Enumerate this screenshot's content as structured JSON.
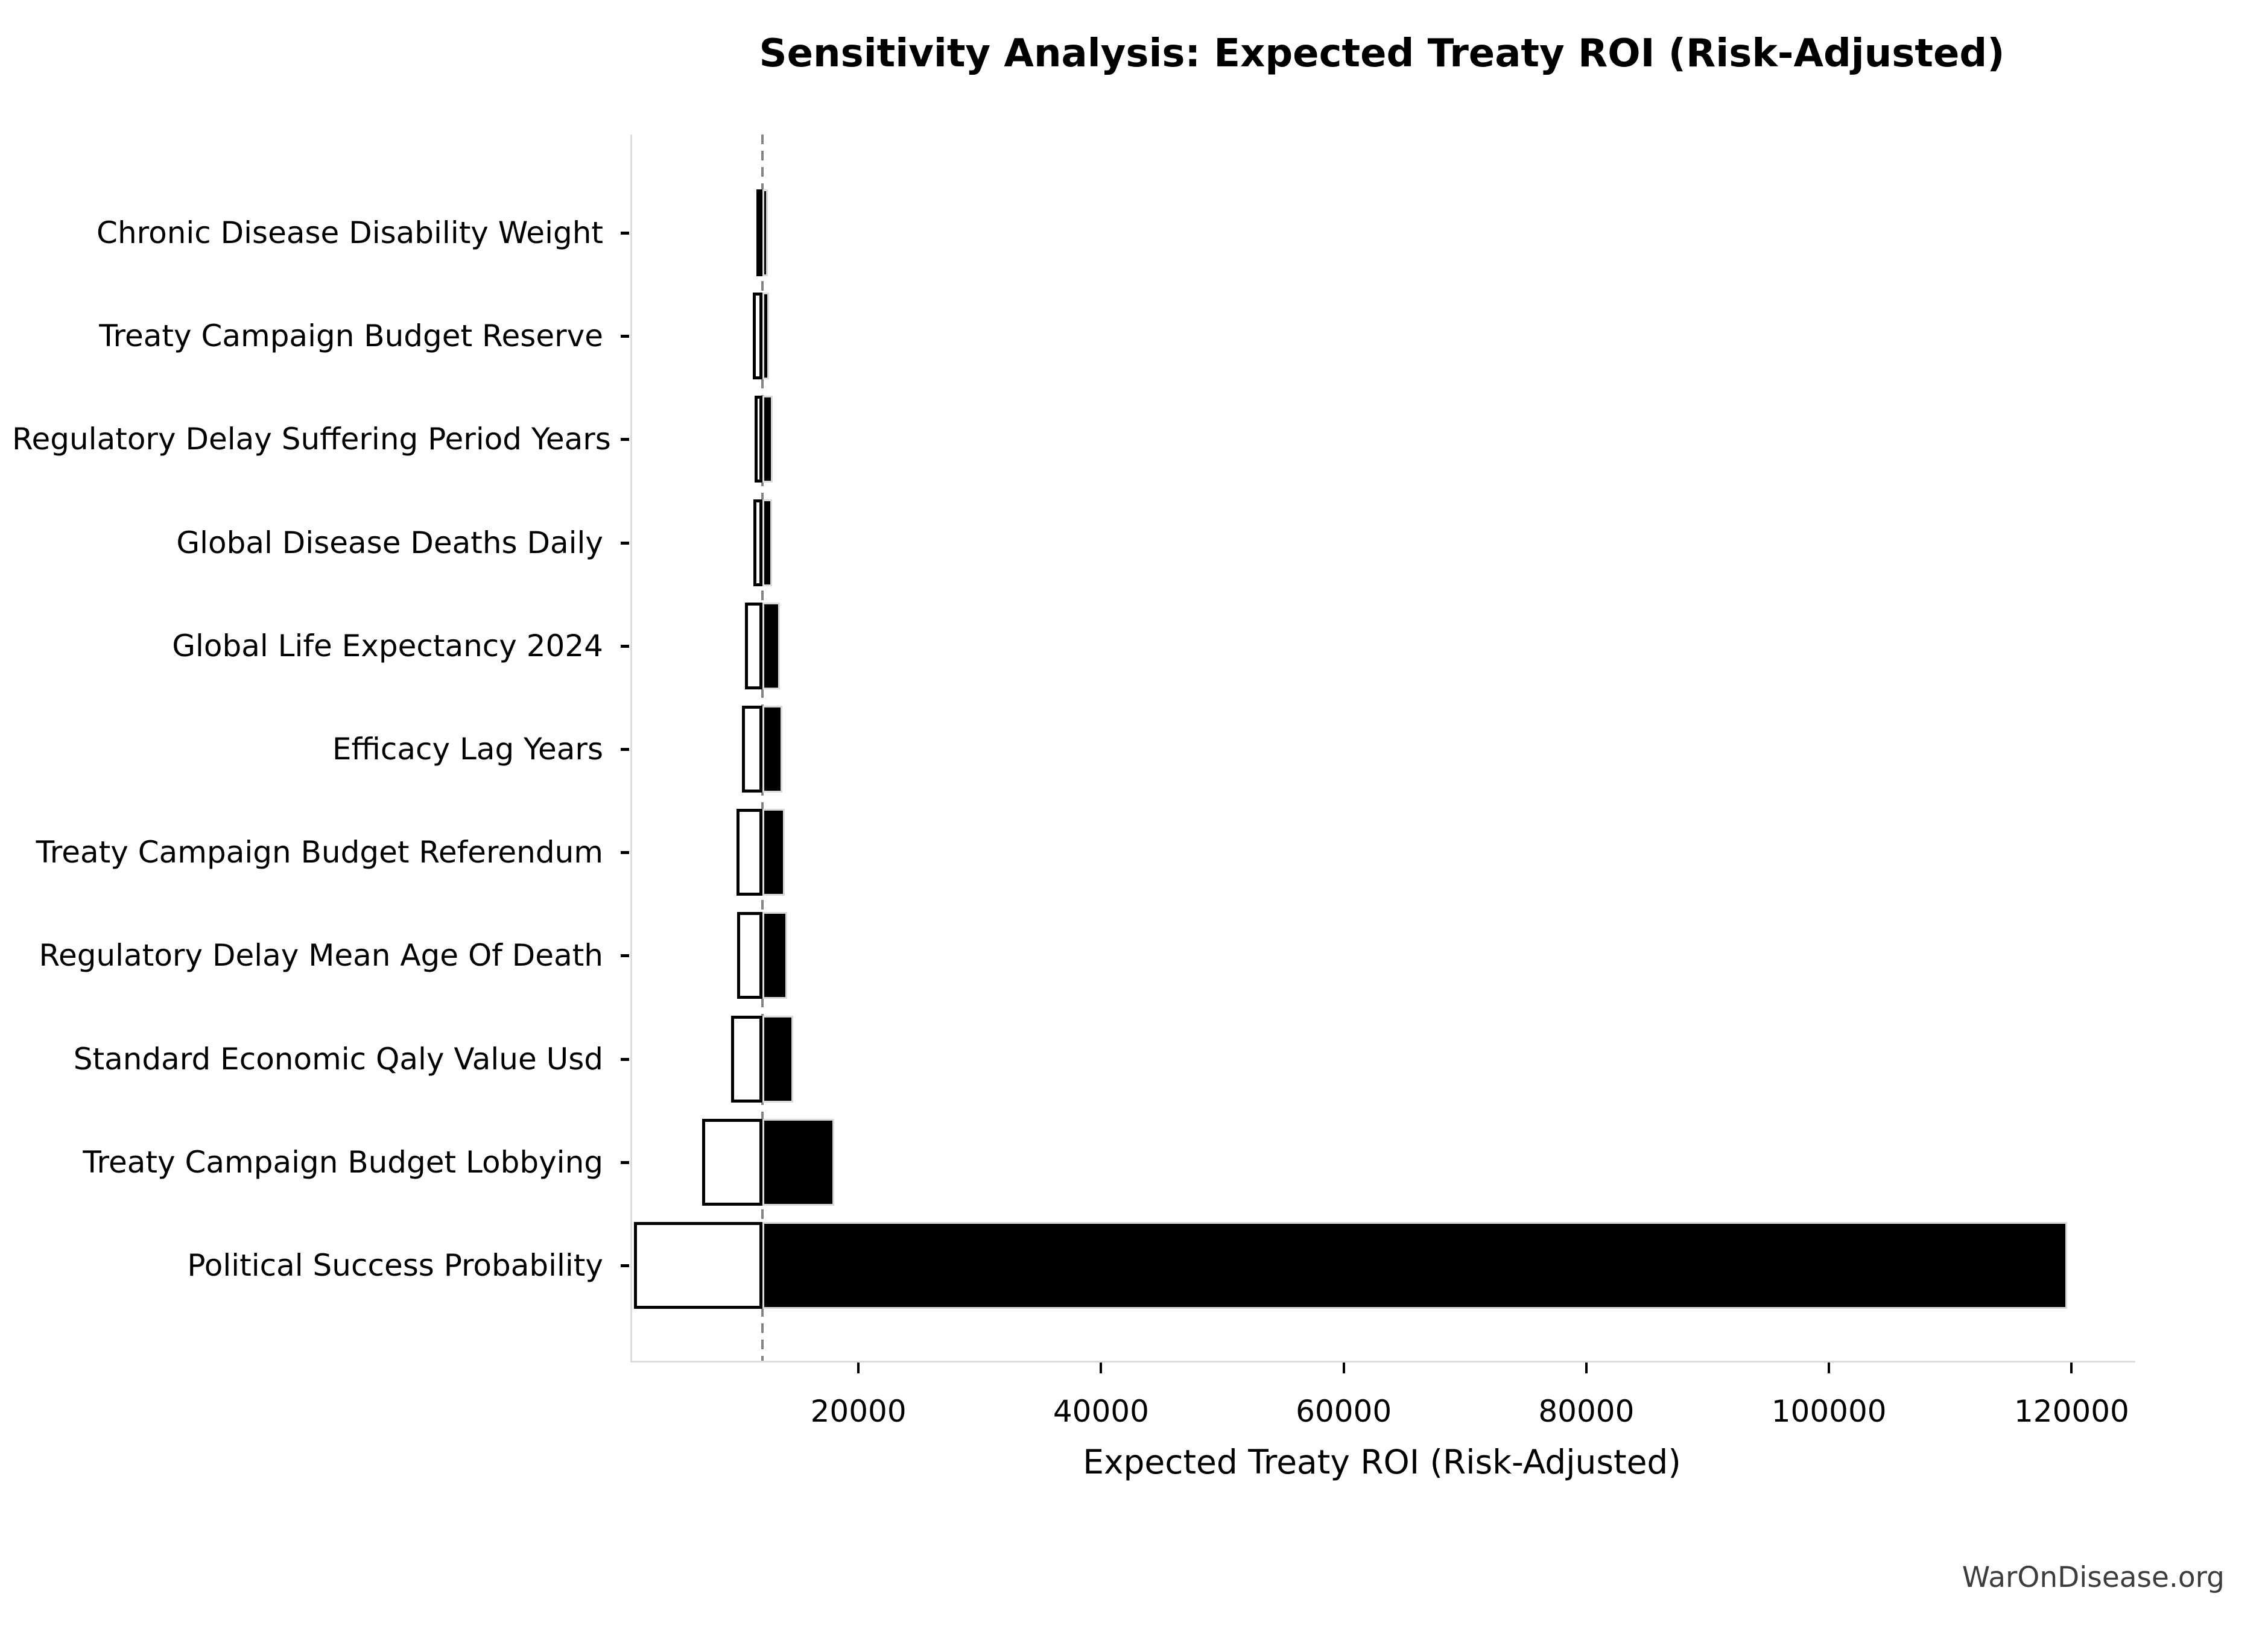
{
  "title": "Sensitivity Analysis: Expected Treaty ROI (Risk-Adjusted)",
  "watermark": "WarOnDisease.org",
  "chart_data": {
    "type": "bar",
    "subtype": "tornado-sensitivity",
    "title": "Sensitivity Analysis: Expected Treaty ROI (Risk-Adjusted)",
    "xlabel": "Expected Treaty ROI (Risk-Adjusted)",
    "ylabel": "",
    "legend": null,
    "grid": false,
    "baseline_value": 11930,
    "axis": {
      "xmin": 1200,
      "xmax": 125100,
      "tick_values": [
        20000,
        40000,
        60000,
        80000,
        100000,
        120000
      ],
      "tick_labels": [
        "20000",
        "40000",
        "60000",
        "80000",
        "100000",
        "120000"
      ]
    },
    "colors": {
      "low_bar_fill": "#ffffff",
      "low_bar_edge": "#000000",
      "high_bar_fill": "#000000",
      "baseline_line": "#838383",
      "spine": "#dcdcdc",
      "text": "#000000",
      "watermark_text": "#3d3d3d"
    },
    "rows": [
      {
        "label": "Chronic Disease Disability Weight",
        "low": 11420,
        "high": 12380
      },
      {
        "label": "Treaty Campaign Budget Reserve",
        "low": 11140,
        "high": 12510
      },
      {
        "label": "Regulatory Delay Suffering Period Years",
        "low": 11270,
        "high": 12790
      },
      {
        "label": "Global Disease Deaths Daily",
        "low": 11170,
        "high": 12760
      },
      {
        "label": "Global Life Expectancy 2024",
        "low": 10520,
        "high": 13370
      },
      {
        "label": "Efficacy Lag Years",
        "low": 10260,
        "high": 13590
      },
      {
        "label": "Treaty Campaign Budget Referendum",
        "low": 9780,
        "high": 13760
      },
      {
        "label": "Regulatory Delay Mean Age Of Death",
        "low": 9840,
        "high": 13960
      },
      {
        "label": "Standard Economic Qaly Value Usd",
        "low": 9350,
        "high": 14480
      },
      {
        "label": "Treaty Campaign Budget Lobbying",
        "low": 6960,
        "high": 17850
      },
      {
        "label": "Political Success Probability",
        "low": 1360,
        "high": 119500
      }
    ]
  }
}
